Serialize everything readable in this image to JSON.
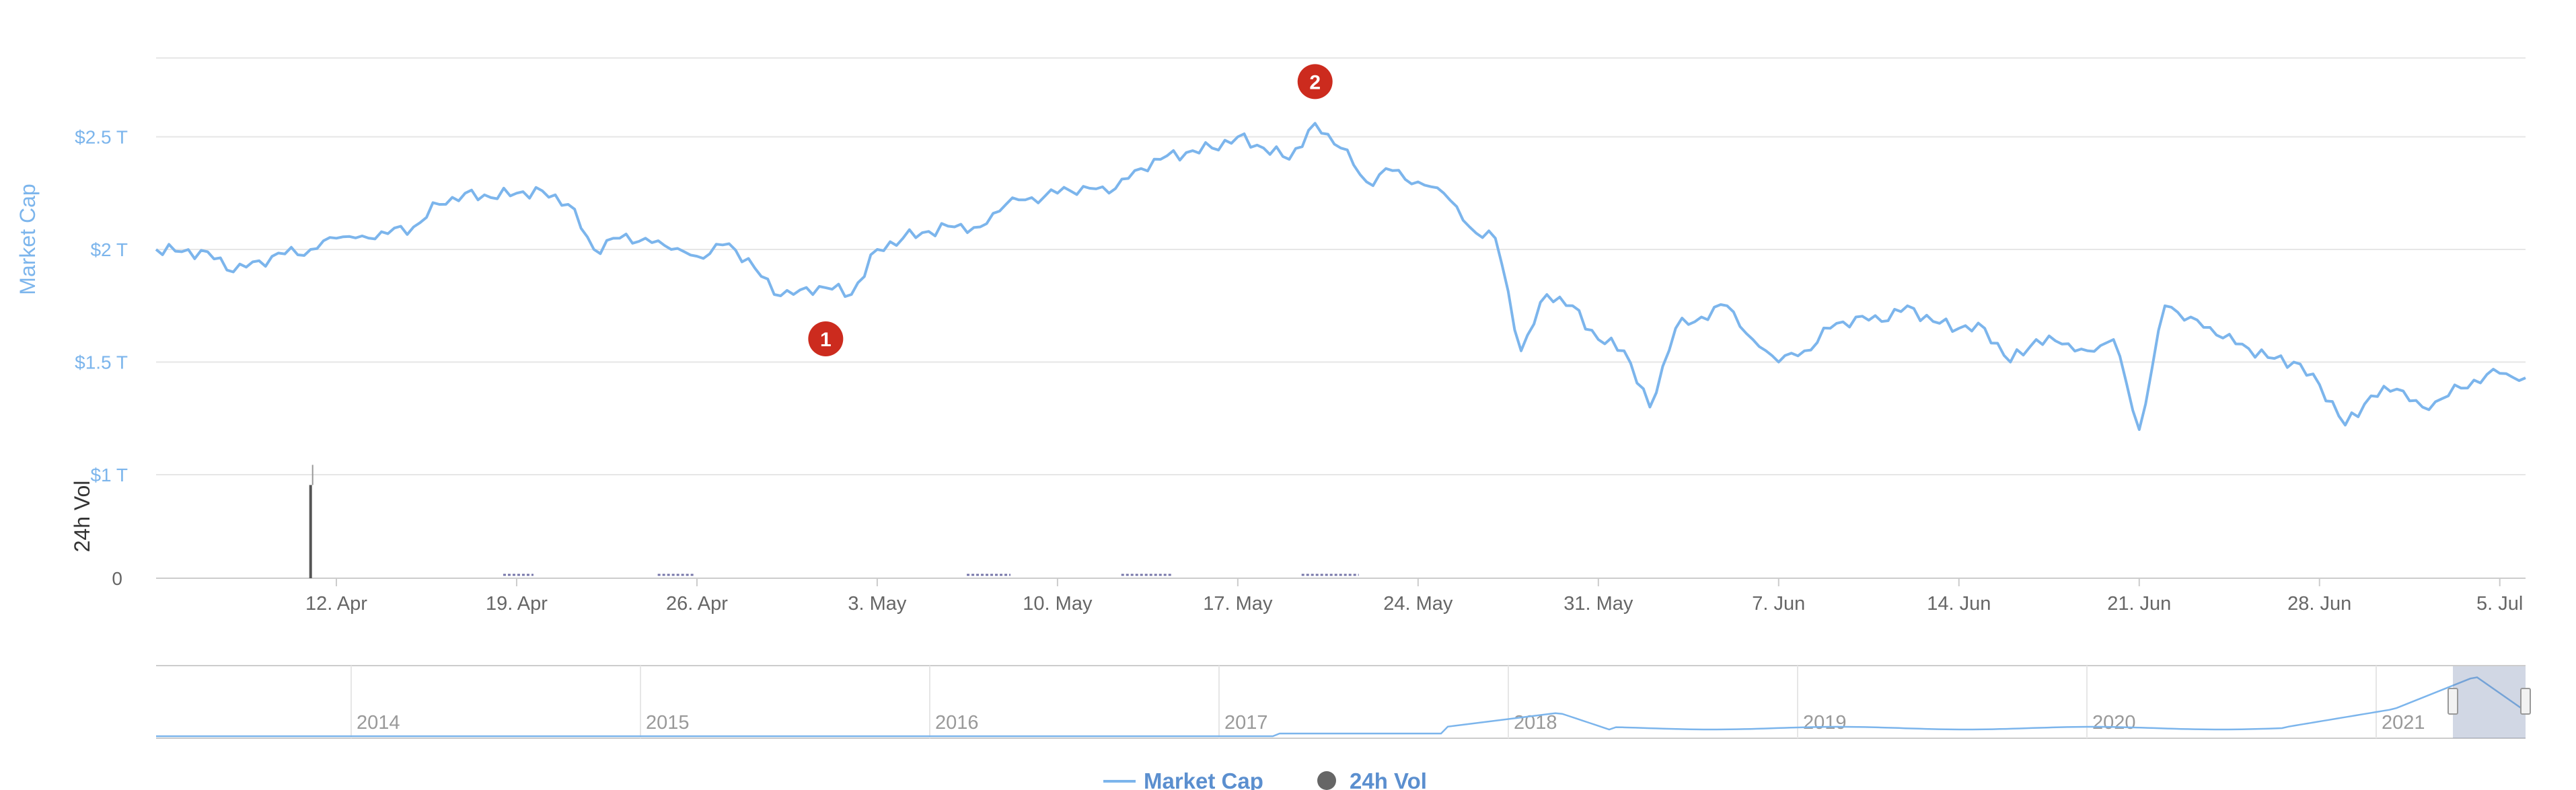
{
  "chart_data": {
    "type": "line",
    "yaxis_market_cap": {
      "title": "Market Cap",
      "ticks": [
        {
          "value": 1.0,
          "label": "$1 T"
        },
        {
          "value": 1.5,
          "label": "$1.5 T"
        },
        {
          "value": 2.0,
          "label": "$2 T"
        },
        {
          "value": 2.5,
          "label": "$2.5 T"
        }
      ],
      "unit": "trillion USD",
      "ylim": [
        1.0,
        2.85
      ]
    },
    "yaxis_volume": {
      "title": "24h Vol",
      "ticks": [
        {
          "value": 0,
          "label": "0"
        }
      ]
    },
    "xaxis": {
      "range": [
        "2021-04-05",
        "2021-07-06"
      ],
      "ticks": [
        {
          "date": "2021-04-12",
          "label": "12. Apr"
        },
        {
          "date": "2021-04-19",
          "label": "19. Apr"
        },
        {
          "date": "2021-04-26",
          "label": "26. Apr"
        },
        {
          "date": "2021-05-03",
          "label": "3. May"
        },
        {
          "date": "2021-05-10",
          "label": "10. May"
        },
        {
          "date": "2021-05-17",
          "label": "17. May"
        },
        {
          "date": "2021-05-24",
          "label": "24. May"
        },
        {
          "date": "2021-05-31",
          "label": "31. May"
        },
        {
          "date": "2021-06-07",
          "label": "7. Jun"
        },
        {
          "date": "2021-06-14",
          "label": "14. Jun"
        },
        {
          "date": "2021-06-21",
          "label": "21. Jun"
        },
        {
          "date": "2021-06-28",
          "label": "28. Jun"
        },
        {
          "date": "2021-07-05",
          "label": "5. Jul"
        }
      ]
    },
    "series": [
      {
        "name": "Market Cap",
        "color": "#7cb5ec",
        "points": [
          [
            "2021-04-05",
            2.0
          ],
          [
            "2021-04-06",
            1.99
          ],
          [
            "2021-04-07",
            1.99
          ],
          [
            "2021-04-08",
            1.9
          ],
          [
            "2021-04-09",
            1.95
          ],
          [
            "2021-04-10",
            1.98
          ],
          [
            "2021-04-11",
            2.0
          ],
          [
            "2021-04-12",
            2.05
          ],
          [
            "2021-04-13",
            2.06
          ],
          [
            "2021-04-14",
            2.07
          ],
          [
            "2021-04-15",
            2.1
          ],
          [
            "2021-04-16",
            2.2
          ],
          [
            "2021-04-17",
            2.25
          ],
          [
            "2021-04-18",
            2.23
          ],
          [
            "2021-04-19",
            2.25
          ],
          [
            "2021-04-20",
            2.26
          ],
          [
            "2021-04-21",
            2.2
          ],
          [
            "2021-04-22",
            2.0
          ],
          [
            "2021-04-23",
            2.05
          ],
          [
            "2021-04-24",
            2.05
          ],
          [
            "2021-04-25",
            2.0
          ],
          [
            "2021-04-26",
            1.97
          ],
          [
            "2021-04-27",
            2.02
          ],
          [
            "2021-04-28",
            1.96
          ],
          [
            "2021-04-29",
            1.8
          ],
          [
            "2021-04-30",
            1.82
          ],
          [
            "2021-05-01",
            1.83
          ],
          [
            "2021-05-02",
            1.8
          ],
          [
            "2021-05-03",
            2.0
          ],
          [
            "2021-05-04",
            2.05
          ],
          [
            "2021-05-05",
            2.08
          ],
          [
            "2021-05-06",
            2.1
          ],
          [
            "2021-05-07",
            2.1
          ],
          [
            "2021-05-08",
            2.2
          ],
          [
            "2021-05-09",
            2.23
          ],
          [
            "2021-05-10",
            2.25
          ],
          [
            "2021-05-11",
            2.28
          ],
          [
            "2021-05-12",
            2.25
          ],
          [
            "2021-05-13",
            2.35
          ],
          [
            "2021-05-14",
            2.4
          ],
          [
            "2021-05-15",
            2.43
          ],
          [
            "2021-05-16",
            2.45
          ],
          [
            "2021-05-17",
            2.5
          ],
          [
            "2021-05-18",
            2.45
          ],
          [
            "2021-05-19",
            2.4
          ],
          [
            "2021-05-20",
            2.56
          ],
          [
            "2021-05-21",
            2.45
          ],
          [
            "2021-05-22",
            2.3
          ],
          [
            "2021-05-23",
            2.35
          ],
          [
            "2021-05-24",
            2.3
          ],
          [
            "2021-05-25",
            2.25
          ],
          [
            "2021-05-26",
            2.1
          ],
          [
            "2021-05-27",
            2.05
          ],
          [
            "2021-05-28",
            1.55
          ],
          [
            "2021-05-29",
            1.8
          ],
          [
            "2021-05-30",
            1.75
          ],
          [
            "2021-05-31",
            1.6
          ],
          [
            "2021-06-01",
            1.55
          ],
          [
            "2021-06-02",
            1.3
          ],
          [
            "2021-06-03",
            1.65
          ],
          [
            "2021-06-04",
            1.7
          ],
          [
            "2021-06-05",
            1.75
          ],
          [
            "2021-06-06",
            1.6
          ],
          [
            "2021-06-07",
            1.5
          ],
          [
            "2021-06-08",
            1.55
          ],
          [
            "2021-06-09",
            1.65
          ],
          [
            "2021-06-10",
            1.7
          ],
          [
            "2021-06-11",
            1.68
          ],
          [
            "2021-06-12",
            1.75
          ],
          [
            "2021-06-13",
            1.68
          ],
          [
            "2021-06-14",
            1.65
          ],
          [
            "2021-06-15",
            1.65
          ],
          [
            "2021-06-16",
            1.5
          ],
          [
            "2021-06-17",
            1.6
          ],
          [
            "2021-06-18",
            1.58
          ],
          [
            "2021-06-19",
            1.55
          ],
          [
            "2021-06-20",
            1.6
          ],
          [
            "2021-06-21",
            1.2
          ],
          [
            "2021-06-22",
            1.75
          ],
          [
            "2021-06-23",
            1.7
          ],
          [
            "2021-06-24",
            1.62
          ],
          [
            "2021-06-25",
            1.58
          ],
          [
            "2021-06-26",
            1.52
          ],
          [
            "2021-06-27",
            1.5
          ],
          [
            "2021-06-28",
            1.4
          ],
          [
            "2021-06-29",
            1.22
          ],
          [
            "2021-06-30",
            1.35
          ],
          [
            "2021-07-01",
            1.38
          ],
          [
            "2021-07-02",
            1.3
          ],
          [
            "2021-07-03",
            1.35
          ],
          [
            "2021-07-04",
            1.42
          ],
          [
            "2021-07-05",
            1.45
          ],
          [
            "2021-07-06",
            1.43
          ]
        ]
      },
      {
        "name": "24h Vol",
        "color": "#555555",
        "spike": {
          "date": "2021-04-11",
          "relative_height": 0.9
        }
      }
    ],
    "flags": [
      {
        "label": "1",
        "date": "2021-05-01",
        "value": 1.8,
        "placement": "below"
      },
      {
        "label": "2",
        "date": "2021-05-20",
        "value": 2.56,
        "placement": "above"
      }
    ],
    "navigator": {
      "years": [
        "2014",
        "2015",
        "2016",
        "2017",
        "2018",
        "2019",
        "2020",
        "2021"
      ],
      "selected_range": [
        "2021-04-05",
        "2021-07-06"
      ]
    },
    "legend": [
      {
        "label": "Market Cap",
        "symbol": "line",
        "color": "#7cb5ec"
      },
      {
        "label": "24h Vol",
        "symbol": "circle",
        "color": "#666666"
      }
    ],
    "grid": true,
    "legend_position": "bottom-center"
  }
}
